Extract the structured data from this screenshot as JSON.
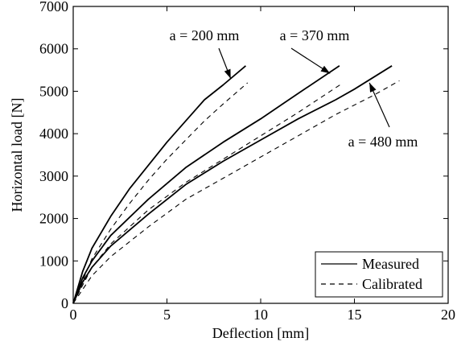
{
  "chart_data": {
    "type": "line",
    "xlabel": "Deflection [mm]",
    "ylabel": "Horizontal load [N]",
    "xlim": [
      0,
      20
    ],
    "ylim": [
      0,
      7000
    ],
    "x_ticks": [
      0,
      5,
      10,
      15,
      20
    ],
    "y_ticks": [
      0,
      1000,
      2000,
      3000,
      4000,
      5000,
      6000,
      7000
    ],
    "x_tick_labels": [
      "0",
      "5",
      "10",
      "15",
      "20"
    ],
    "y_tick_labels": [
      "0",
      "1000",
      "2000",
      "3000",
      "4000",
      "5000",
      "6000",
      "7000"
    ],
    "grid": false,
    "legend": {
      "placement": "bottom-right",
      "entries": [
        {
          "label": "Measured",
          "style": "solid"
        },
        {
          "label": "Calibrated",
          "style": "dashed"
        }
      ]
    },
    "series": [
      {
        "group": "a = 200 mm",
        "style": "solid",
        "x": [
          0,
          0.5,
          1,
          2,
          3,
          4,
          5,
          6,
          7,
          8,
          9.2
        ],
        "y": [
          0,
          750,
          1300,
          2050,
          2700,
          3250,
          3800,
          4300,
          4800,
          5150,
          5600
        ]
      },
      {
        "group": "a = 200 mm",
        "style": "dashed",
        "x": [
          0,
          1,
          2,
          3,
          4,
          5,
          6,
          7,
          8,
          9.3
        ],
        "y": [
          0,
          1050,
          1750,
          2350,
          2900,
          3400,
          3850,
          4300,
          4700,
          5200
        ]
      },
      {
        "group": "a = 370 mm",
        "style": "solid",
        "x": [
          0,
          0.5,
          1,
          2,
          4,
          6,
          8,
          10,
          12,
          14.2
        ],
        "y": [
          0,
          600,
          1000,
          1600,
          2450,
          3200,
          3800,
          4350,
          4950,
          5600
        ]
      },
      {
        "group": "a = 370 mm",
        "style": "dashed",
        "x": [
          0,
          1,
          2,
          4,
          6,
          8,
          10,
          12,
          14.4
        ],
        "y": [
          0,
          850,
          1400,
          2200,
          2850,
          3400,
          3950,
          4500,
          5200
        ]
      },
      {
        "group": "a = 480 mm",
        "style": "solid",
        "x": [
          0,
          0.5,
          1,
          2,
          4,
          6,
          8,
          10,
          12,
          14,
          15,
          17
        ],
        "y": [
          0,
          500,
          850,
          1350,
          2100,
          2800,
          3350,
          3850,
          4350,
          4800,
          5050,
          5600
        ]
      },
      {
        "group": "a = 480 mm",
        "style": "dashed",
        "x": [
          0,
          1,
          2,
          4,
          6,
          8,
          10,
          12,
          14,
          16,
          17.4
        ],
        "y": [
          0,
          650,
          1100,
          1800,
          2450,
          2950,
          3450,
          3950,
          4450,
          4900,
          5250
        ]
      }
    ],
    "annotations": [
      {
        "text": "a = 200 mm",
        "target": [
          8.4,
          5300
        ]
      },
      {
        "text": "a = 370 mm",
        "target": [
          13.7,
          5420
        ]
      },
      {
        "text": "a = 480 mm",
        "target": [
          15.8,
          5200
        ]
      }
    ]
  }
}
